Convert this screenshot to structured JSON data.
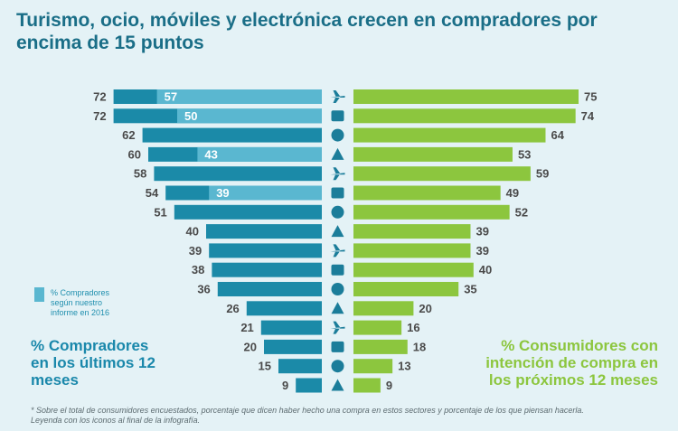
{
  "chart_data": {
    "type": "bar",
    "title_lines": [
      "Turismo, ocio, móviles y electrónica crecen en compradores por",
      "encima de 15 puntos"
    ],
    "icons": [
      "airplane-icon",
      "clapperboard-icon",
      "dress-icon",
      "smartphone-icon",
      "high-heel-icon",
      "computer-icon",
      "heart-hand-icon",
      "athlete-icon",
      "teddy-bear-icon",
      "perfume-icon",
      "sofa-icon",
      "graduation-cap-icon",
      "car-icon",
      "baby-icon",
      "bicycle-icon",
      "motorbike-icon"
    ],
    "series": [
      {
        "name": "% Compradores en los últimos 12 meses",
        "values": [
          72,
          72,
          62,
          60,
          58,
          54,
          51,
          40,
          39,
          38,
          36,
          26,
          21,
          20,
          15,
          9
        ],
        "color": "#1b8aa8"
      },
      {
        "name": "% Compradores según nuestro informe en 2016",
        "values": [
          57,
          50,
          null,
          43,
          null,
          39,
          null,
          null,
          null,
          null,
          null,
          null,
          null,
          null,
          null,
          null
        ],
        "color": "#5ab7d0"
      },
      {
        "name": "% Consumidores con intención de compra en los próximos 12 meses",
        "values": [
          75,
          74,
          64,
          53,
          59,
          49,
          52,
          39,
          39,
          40,
          35,
          20,
          16,
          18,
          13,
          9
        ],
        "color": "#8cc63e"
      }
    ],
    "xlim": [
      0,
      75
    ]
  },
  "legend": {
    "box_color": "#5ab7d0",
    "text_lines": [
      "% Compradores",
      "según nuestro",
      "informe en 2016"
    ]
  },
  "labels": {
    "left_lines": [
      "% Compradores",
      "en los últimos 12",
      "meses"
    ],
    "right_lines": [
      "% Consumidores con",
      "intención de compra en",
      "los próximos 12 meses"
    ]
  },
  "footnote_lines": [
    "* Sobre el total de consumidores encuestados, porcentaje que dicen haber hecho una compra en estos sectores y porcentaje de los que piensan hacerla.",
    "Leyenda con los iconos al final de la infografía."
  ],
  "colors": {
    "title": "#1a6e87",
    "left_text": "#1a88ab",
    "right_text": "#8cc63e",
    "icon": "#1b7d9a",
    "background": "#e4f2f6"
  }
}
